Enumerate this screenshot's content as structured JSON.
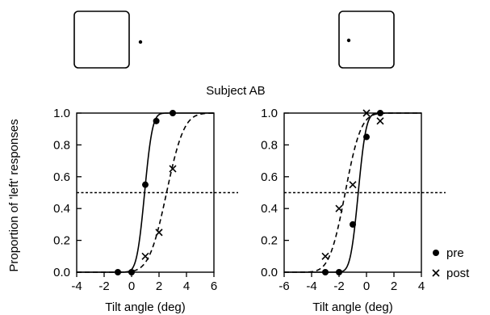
{
  "figure": {
    "subject_label": "Subject AB",
    "ylabel": "Proportion of 'left' responses",
    "legend": [
      {
        "marker": "dot",
        "label": "pre"
      },
      {
        "marker": "cross",
        "label": "post"
      }
    ]
  },
  "chart_data": [
    {
      "type": "scatter",
      "panel": "left",
      "xlabel": "Tilt angle (deg)",
      "xlim": [
        -4,
        6
      ],
      "ylim": [
        0.0,
        1.0
      ],
      "xticks": [
        "-4",
        "-2",
        "0",
        "2",
        "4",
        "6"
      ],
      "yticks": [
        "0.0",
        "0.2",
        "0.4",
        "0.6",
        "0.8",
        "1.0"
      ],
      "reference_line": 0.5,
      "series": [
        {
          "name": "pre",
          "marker": "dot",
          "line": "solid",
          "x": [
            -1,
            0,
            1,
            1.8,
            3
          ],
          "y": [
            0.0,
            0.0,
            0.55,
            0.95,
            1.0
          ],
          "fit": {
            "mu": 0.95,
            "sigma": 0.45
          }
        },
        {
          "name": "post",
          "marker": "cross",
          "line": "dashed",
          "x": [
            1,
            2,
            3
          ],
          "y": [
            0.1,
            0.25,
            0.65
          ],
          "fit": {
            "mu": 2.55,
            "sigma": 1.0
          }
        }
      ]
    },
    {
      "type": "scatter",
      "panel": "right",
      "xlabel": "Tilt angle (deg)",
      "xlim": [
        -6,
        4
      ],
      "ylim": [
        0.0,
        1.0
      ],
      "xticks": [
        "-6",
        "-4",
        "-2",
        "0",
        "2",
        "4"
      ],
      "yticks": [
        "0.0",
        "0.2",
        "0.4",
        "0.6",
        "0.8",
        "1.0"
      ],
      "reference_line": 0.5,
      "series": [
        {
          "name": "pre",
          "marker": "dot",
          "line": "solid",
          "x": [
            -3,
            -2,
            -1,
            0,
            1
          ],
          "y": [
            0.0,
            0.0,
            0.3,
            0.85,
            1.0
          ],
          "fit": {
            "mu": -0.6,
            "sigma": 0.45
          }
        },
        {
          "name": "post",
          "marker": "cross",
          "line": "dashed",
          "x": [
            -3,
            -2,
            -1,
            0,
            1
          ],
          "y": [
            0.1,
            0.4,
            0.55,
            1.0,
            0.95
          ],
          "fit": {
            "mu": -1.55,
            "sigma": 0.9
          }
        }
      ]
    }
  ]
}
